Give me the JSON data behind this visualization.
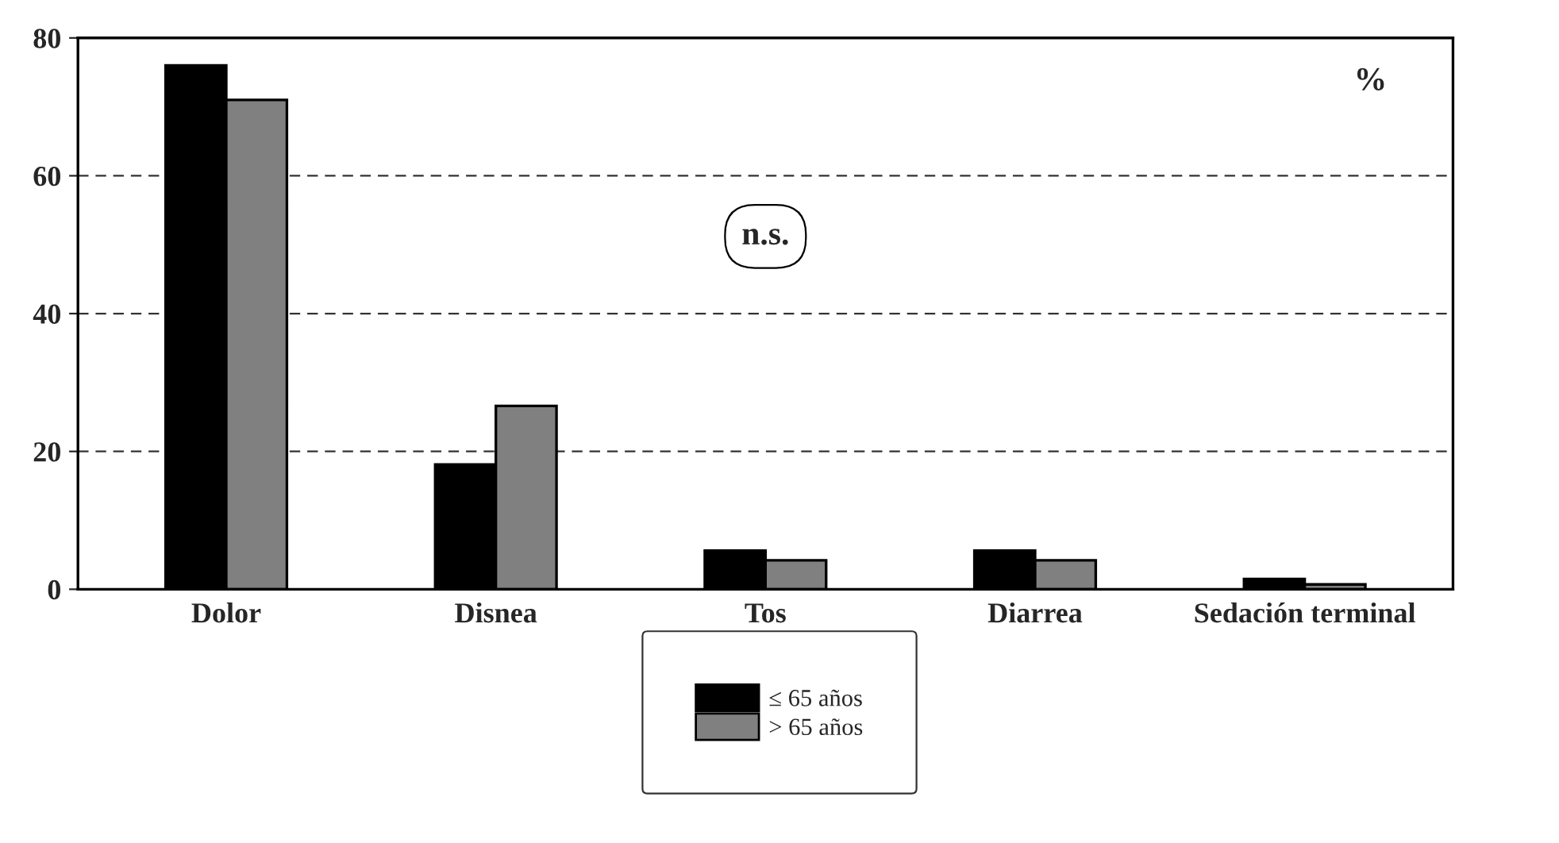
{
  "chart_data": {
    "type": "bar",
    "categories": [
      "Dolor",
      "Disnea",
      "Tos",
      "Diarrea",
      "Sedación terminal"
    ],
    "series": [
      {
        "name": "≤ 65 años",
        "color": "#000000",
        "values": [
          76,
          18.1,
          5.6,
          5.6,
          1.5
        ]
      },
      {
        "name": "> 65 años",
        "color": "#808080",
        "values": [
          71,
          26.6,
          4.2,
          4.2,
          0.7
        ]
      }
    ],
    "ylim": [
      0,
      80
    ],
    "yticks": [
      0,
      20,
      40,
      60,
      80
    ],
    "annotations": [
      "n.s.",
      "%"
    ],
    "grid": "y",
    "legend": "bottom"
  }
}
